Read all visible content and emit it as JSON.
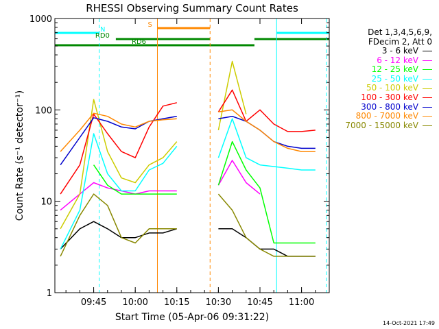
{
  "chart_data": {
    "type": "line",
    "title": "RHESSI Observing Summary Count Rates",
    "xlabel": "Start Time (05-Apr-06 09:31:22)",
    "ylabel": "Count Rate (s⁻¹ detector⁻¹)",
    "yscale": "log",
    "ylim": [
      1,
      1000
    ],
    "xlim": [
      "09:31",
      "11:10"
    ],
    "x_ticks": [
      "09:45",
      "10:00",
      "10:15",
      "10:30",
      "10:45",
      "11:00"
    ],
    "y_ticks": [
      "1",
      "10",
      "100",
      "1000"
    ],
    "legend_header": [
      "Det 1,3,4,5,6,9,",
      "FDecim 2, Att 0"
    ],
    "series": [
      {
        "name": "3 - 6 keV",
        "color": "#000000",
        "x": [
          "09:33",
          "09:40",
          "09:45",
          "09:50",
          "09:55",
          "10:00",
          "10:05",
          "10:10",
          "10:15",
          "10:25",
          "10:30",
          "10:35",
          "10:40",
          "10:45",
          "10:50",
          "10:55",
          "11:00",
          "11:05"
        ],
        "values": [
          3,
          5,
          6,
          5,
          4,
          4,
          4.5,
          4.5,
          5,
          null,
          5,
          5,
          4,
          3,
          3,
          2.5,
          2.5,
          2.5
        ]
      },
      {
        "name": "6 - 12 keV",
        "color": "#ff00ff",
        "x": [
          "09:33",
          "09:40",
          "09:45",
          "09:50",
          "09:55",
          "10:00",
          "10:05",
          "10:10",
          "10:15",
          "10:25",
          "10:30",
          "10:35",
          "10:40",
          "10:45",
          "10:50",
          "10:55",
          "11:00",
          "11:05"
        ],
        "values": [
          8,
          12,
          16,
          14,
          13,
          12,
          13,
          13,
          13,
          null,
          15,
          28,
          16,
          12,
          null,
          null,
          null,
          null
        ]
      },
      {
        "name": "12 - 25 keV",
        "color": "#00ff00",
        "x": [
          "09:33",
          "09:40",
          "09:45",
          "09:50",
          "09:55",
          "10:00",
          "10:05",
          "10:10",
          "10:15",
          "10:25",
          "10:30",
          "10:35",
          "10:40",
          "10:45",
          "10:50",
          "10:55",
          "11:00",
          "11:05"
        ],
        "values": [
          null,
          null,
          25,
          15,
          12,
          12,
          12,
          12,
          12,
          null,
          15,
          45,
          22,
          14,
          3.5,
          3.5,
          3.5,
          3.5
        ]
      },
      {
        "name": "25 - 50 keV",
        "color": "#00ffff",
        "x": [
          "09:33",
          "09:40",
          "09:45",
          "09:50",
          "09:55",
          "10:00",
          "10:05",
          "10:10",
          "10:15",
          "10:25",
          "10:30",
          "10:35",
          "10:40",
          "10:45",
          "10:50",
          "10:55",
          "11:00",
          "11:05"
        ],
        "values": [
          3,
          8,
          55,
          20,
          13,
          13,
          22,
          26,
          40,
          null,
          30,
          80,
          30,
          25,
          24,
          23,
          22,
          22
        ]
      },
      {
        "name": "50 - 100 keV",
        "color": "#cccc00",
        "x": [
          "09:33",
          "09:40",
          "09:45",
          "09:50",
          "09:55",
          "10:00",
          "10:05",
          "10:10",
          "10:15",
          "10:25",
          "10:30",
          "10:35",
          "10:40",
          "10:45",
          "10:50",
          "10:55",
          "11:00",
          "11:05"
        ],
        "values": [
          5,
          12,
          130,
          35,
          18,
          16,
          25,
          30,
          45,
          null,
          60,
          340,
          90,
          null,
          null,
          null,
          null,
          null
        ]
      },
      {
        "name": "100 - 300 keV",
        "color": "#ff0000",
        "x": [
          "09:33",
          "09:40",
          "09:45",
          "09:50",
          "09:55",
          "10:00",
          "10:05",
          "10:10",
          "10:15",
          "10:25",
          "10:30",
          "10:35",
          "10:40",
          "10:45",
          "10:50",
          "10:55",
          "11:00",
          "11:05"
        ],
        "values": [
          12,
          25,
          90,
          55,
          35,
          30,
          65,
          110,
          120,
          null,
          95,
          165,
          75,
          100,
          70,
          58,
          58,
          60
        ]
      },
      {
        "name": "300 - 800 keV",
        "color": "#0000cc",
        "x": [
          "09:33",
          "09:40",
          "09:45",
          "09:50",
          "09:55",
          "10:00",
          "10:05",
          "10:10",
          "10:15",
          "10:25",
          "10:30",
          "10:35",
          "10:40",
          "10:45",
          "10:50",
          "10:55",
          "11:00",
          "11:05"
        ],
        "values": [
          25,
          50,
          82,
          75,
          65,
          62,
          75,
          80,
          85,
          null,
          80,
          85,
          75,
          60,
          45,
          40,
          38,
          38
        ]
      },
      {
        "name": "800 - 7000 keV",
        "color": "#ff8800",
        "x": [
          "09:33",
          "09:40",
          "09:45",
          "09:50",
          "09:55",
          "10:00",
          "10:05",
          "10:10",
          "10:15",
          "10:25",
          "10:30",
          "10:35",
          "10:40",
          "10:45",
          "10:50",
          "10:55",
          "11:00",
          "11:05"
        ],
        "values": [
          35,
          60,
          92,
          85,
          70,
          65,
          75,
          78,
          80,
          null,
          95,
          100,
          75,
          60,
          45,
          38,
          35,
          35
        ]
      },
      {
        "name": "7000 - 15000 keV",
        "color": "#888800",
        "x": [
          "09:33",
          "09:40",
          "09:45",
          "09:50",
          "09:55",
          "10:00",
          "10:05",
          "10:10",
          "10:15",
          "10:25",
          "10:30",
          "10:35",
          "10:40",
          "10:45",
          "10:50",
          "10:55",
          "11:00",
          "11:05"
        ],
        "values": [
          2.5,
          7,
          12,
          9,
          4,
          3.5,
          5,
          5,
          5,
          null,
          12,
          8,
          4,
          3,
          2.5,
          2.5,
          2.5,
          2.5
        ]
      }
    ],
    "flags": [
      {
        "label": "N",
        "color": "#00ffff",
        "segments": [
          [
            "09:31",
            "09:47"
          ],
          [
            "10:51",
            "11:10"
          ]
        ]
      },
      {
        "label": "RD0",
        "color": "#008800",
        "segments": [
          [
            "09:53",
            "10:27"
          ],
          [
            "10:43",
            "11:10"
          ]
        ]
      },
      {
        "label": "RD6",
        "color": "#008800",
        "segments": [
          [
            "09:31",
            "10:27"
          ],
          [
            "10:27",
            "10:43"
          ]
        ]
      },
      {
        "label": "S",
        "color": "#ff8800",
        "segments": [
          [
            "10:08",
            "10:27"
          ]
        ]
      }
    ],
    "vlines": [
      {
        "x": "09:31",
        "color": "#00ffff",
        "style": "solid"
      },
      {
        "x": "09:47",
        "color": "#00ffff",
        "style": "dashed"
      },
      {
        "x": "10:08",
        "color": "#ff8800",
        "style": "solid"
      },
      {
        "x": "10:27",
        "color": "#ff8800",
        "style": "dashed"
      },
      {
        "x": "10:51",
        "color": "#00ffff",
        "style": "solid"
      },
      {
        "x": "11:09",
        "color": "#00ffff",
        "style": "dashed"
      }
    ],
    "grid": false,
    "legend": "right"
  },
  "footer": {
    "timestamp": "14-Oct-2021 17:49"
  }
}
